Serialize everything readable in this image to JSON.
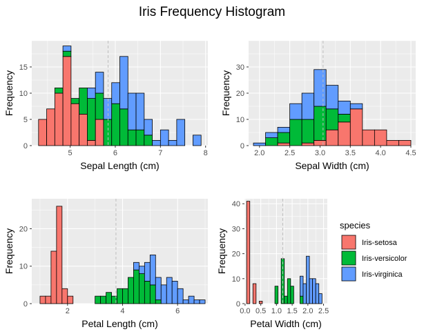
{
  "title": "Iris Frequency Histogram",
  "legend": {
    "title": "species",
    "placement": "right",
    "entries": [
      {
        "name": "Iris-setosa",
        "color": "#F8766D"
      },
      {
        "name": "Iris-versicolor",
        "color": "#00BA38"
      },
      {
        "name": "Iris-virginica",
        "color": "#619CFF"
      }
    ]
  },
  "chart_data": [
    {
      "type": "bar",
      "stacked": true,
      "xlabel": "Sepal Length (cm)",
      "ylabel": "Frequency",
      "xlim": [
        4.15,
        8.05
      ],
      "ylim": [
        0,
        20
      ],
      "xticks": [
        5,
        6,
        7,
        8
      ],
      "yticks": [
        0,
        5,
        10,
        15
      ],
      "bin_start": 4.3,
      "bin_width": 0.18,
      "mean_line": 5.84,
      "grid": true,
      "series": [
        {
          "name": "Iris-setosa",
          "values": [
            5,
            7,
            10,
            17,
            8,
            6,
            1,
            5,
            0,
            0,
            0,
            0,
            0,
            0,
            0,
            0,
            0,
            0,
            0,
            0
          ]
        },
        {
          "name": "Iris-versicolor",
          "values": [
            0,
            0,
            1,
            1,
            1,
            5,
            8,
            5,
            5,
            8,
            7,
            3,
            3,
            2,
            0,
            0,
            0,
            0,
            0,
            0
          ]
        },
        {
          "name": "Iris-virginica",
          "values": [
            0,
            0,
            0,
            1,
            0,
            0,
            2,
            4,
            4,
            4,
            10,
            7,
            7,
            3,
            1,
            3,
            1,
            5,
            0,
            2
          ]
        }
      ]
    },
    {
      "type": "bar",
      "stacked": true,
      "xlabel": "Sepal Width (cm)",
      "ylabel": "Frequency",
      "xlim": [
        1.82,
        4.58
      ],
      "ylim": [
        0,
        40
      ],
      "xticks": [
        2.0,
        2.5,
        3.0,
        3.5,
        4.0,
        4.5
      ],
      "yticks": [
        0,
        10,
        20,
        30
      ],
      "bin_start": 1.9,
      "bin_width": 0.2,
      "mean_line": 3.05,
      "grid": true,
      "series": [
        {
          "name": "Iris-setosa",
          "values": [
            0,
            0,
            1,
            0,
            1,
            2,
            6,
            9,
            14,
            6,
            6,
            2,
            2
          ]
        },
        {
          "name": "Iris-versicolor",
          "values": [
            0,
            3,
            4,
            10,
            9,
            13,
            8,
            3,
            0,
            0,
            0,
            0,
            0
          ]
        },
        {
          "name": "Iris-virginica",
          "values": [
            1,
            2,
            2,
            6,
            10,
            14,
            9,
            5,
            2,
            0,
            0,
            0,
            0
          ]
        }
      ]
    },
    {
      "type": "bar",
      "stacked": true,
      "xlabel": "Petal Length (cm)",
      "ylabel": "Frequency",
      "xlim": [
        0.7,
        7.1
      ],
      "ylim": [
        0,
        28
      ],
      "xticks": [
        2,
        4,
        6
      ],
      "yticks": [
        0,
        10,
        20
      ],
      "bin_start": 1.0,
      "bin_width": 0.2,
      "mean_line": 3.76,
      "grid": true,
      "series": [
        {
          "name": "Iris-setosa",
          "values": [
            2,
            2,
            14,
            26,
            4,
            2,
            0,
            0,
            0,
            0,
            0,
            0,
            0,
            0,
            0,
            0,
            0,
            0,
            0,
            0,
            0,
            0,
            0,
            0,
            0,
            0,
            0,
            0,
            0,
            0
          ]
        },
        {
          "name": "Iris-versicolor",
          "values": [
            0,
            0,
            0,
            0,
            0,
            0,
            0,
            0,
            0,
            0,
            2,
            2,
            3,
            2,
            4,
            4,
            7,
            9,
            8,
            6,
            5,
            1,
            0,
            0,
            0,
            0,
            0,
            0,
            0,
            0
          ]
        },
        {
          "name": "Iris-virginica",
          "values": [
            0,
            0,
            0,
            0,
            0,
            0,
            0,
            0,
            0,
            0,
            0,
            0,
            0,
            0,
            0,
            0,
            0,
            2,
            2,
            5,
            8,
            6,
            5,
            7,
            6,
            4,
            1,
            2,
            1,
            1
          ]
        }
      ]
    },
    {
      "type": "bar",
      "stacked": true,
      "xlabel": "Petal Width (cm)",
      "ylabel": "Frequency",
      "xlim": [
        -0.02,
        2.62
      ],
      "ylim": [
        0,
        42
      ],
      "xticks": [
        0.0,
        0.5,
        1.0,
        1.5,
        2.0,
        2.5
      ],
      "yticks": [
        0,
        10,
        20,
        30,
        40
      ],
      "bin_start": 0.05,
      "bin_width": 0.1,
      "mean_line": 1.2,
      "grid": true,
      "series": [
        {
          "name": "Iris-setosa",
          "values": [
            41,
            0,
            8,
            0,
            1,
            0,
            0,
            0,
            0,
            0,
            0,
            0,
            0,
            0,
            0,
            0,
            0,
            0,
            0,
            0,
            0,
            0,
            0,
            0,
            0
          ]
        },
        {
          "name": "Iris-versicolor",
          "values": [
            0,
            0,
            0,
            0,
            0,
            0,
            0,
            0,
            0,
            7,
            0,
            18,
            3,
            10,
            7,
            0,
            0,
            3,
            0,
            0,
            0,
            0,
            0,
            0,
            0
          ]
        },
        {
          "name": "Iris-virginica",
          "values": [
            0,
            0,
            0,
            0,
            0,
            0,
            0,
            0,
            0,
            0,
            0,
            0,
            0,
            0,
            0,
            0,
            0,
            8,
            8,
            19,
            10,
            10,
            8,
            4,
            0
          ]
        }
      ]
    }
  ]
}
